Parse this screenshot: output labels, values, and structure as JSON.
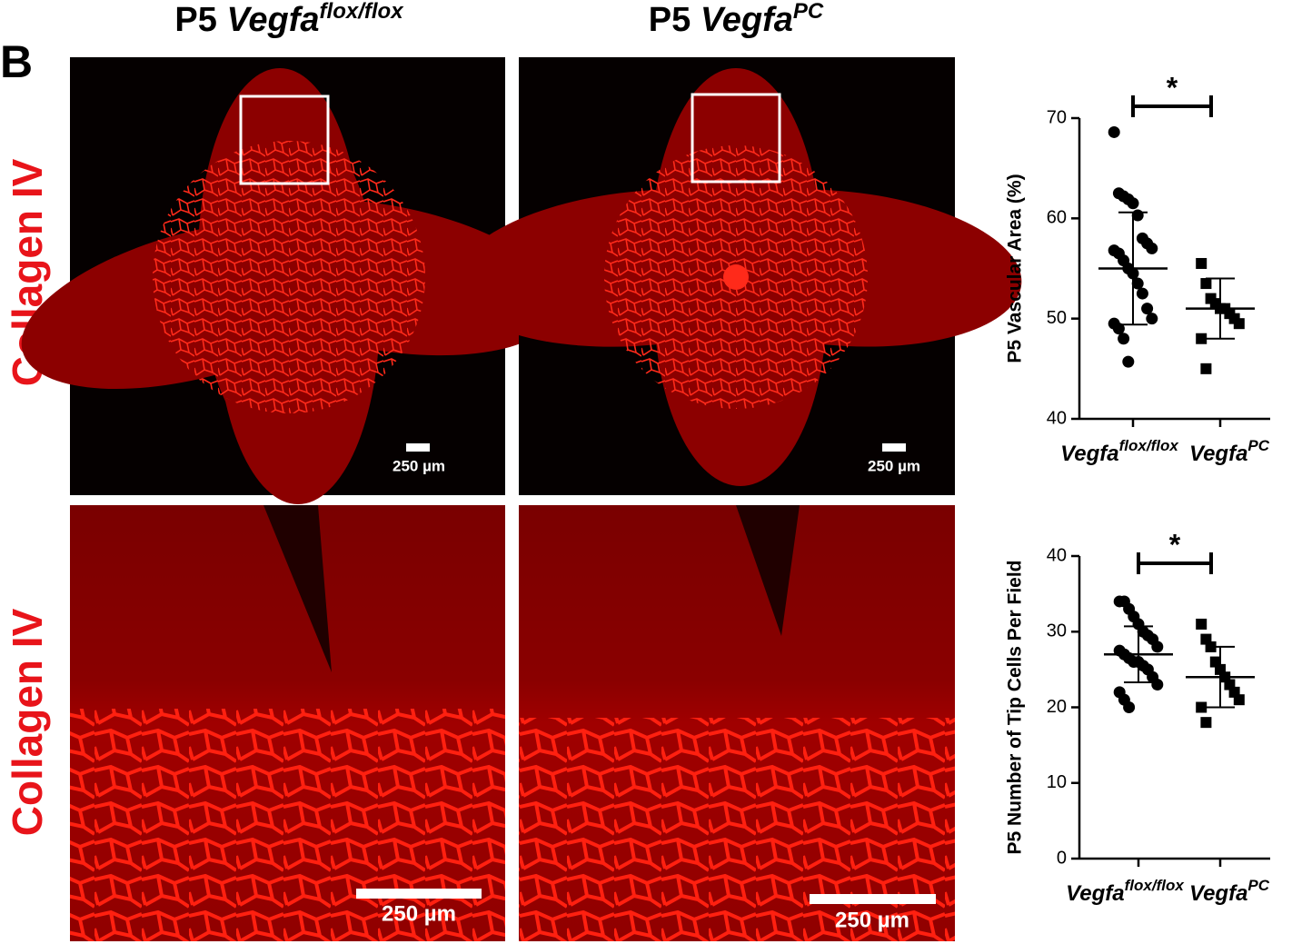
{
  "panel_label": "B",
  "column_headers": [
    {
      "prefix": "P5",
      "gene": "Vegfa",
      "superscript": "flox/flox"
    },
    {
      "prefix": "P5",
      "gene": "Vegfa",
      "superscript": "PC"
    }
  ],
  "row_labels": [
    "Collagen IV",
    "Collagen IV"
  ],
  "scale_bars": [
    "250 µm",
    "250 µm",
    "250 µm",
    "250 µm"
  ],
  "chart_data": [
    {
      "type": "dot",
      "y_label": "P5 Vascular Area (%)",
      "categories": [
        "Vegfa",
        "Vegfa"
      ],
      "category_superscripts": [
        "flox/flox",
        "PC"
      ],
      "ylim": [
        40,
        70
      ],
      "yticks": [
        40,
        50,
        60,
        70
      ],
      "annotation": "*",
      "groups": [
        {
          "marker": "circle",
          "color": "#000000",
          "mean": 55.0,
          "sd": 5.6,
          "values": [
            68.6,
            62.5,
            62.2,
            61.9,
            61.5,
            60.3,
            58.0,
            57.5,
            57.0,
            56.8,
            56.5,
            55.8,
            55.0,
            54.5,
            53.5,
            52.5,
            51.0,
            50.0,
            49.5,
            49.0,
            48.0,
            45.7
          ]
        },
        {
          "marker": "square",
          "color": "#000000",
          "mean": 51.0,
          "sd": 3.0,
          "values": [
            55.5,
            53.5,
            52.0,
            51.5,
            51.0,
            51.0,
            50.5,
            50.0,
            49.5,
            48.0,
            45.0
          ]
        }
      ]
    },
    {
      "type": "dot",
      "y_label": "P5 Number of Tip Cells Per Field",
      "categories": [
        "Vegfa",
        "Vegfa"
      ],
      "category_superscripts": [
        "flox/flox",
        "PC"
      ],
      "ylim": [
        0,
        40
      ],
      "yticks": [
        0,
        10,
        20,
        30,
        40
      ],
      "annotation": "*",
      "groups": [
        {
          "marker": "circle",
          "color": "#000000",
          "mean": 27.0,
          "sd": 3.7,
          "values": [
            34,
            34,
            33,
            32,
            31,
            30,
            29.5,
            29,
            28,
            27.5,
            27,
            26.5,
            26,
            26,
            25.5,
            25,
            24,
            23,
            22,
            21,
            20
          ]
        },
        {
          "marker": "square",
          "color": "#000000",
          "mean": 24.0,
          "sd": 4.0,
          "values": [
            31,
            29,
            28,
            26,
            25,
            24,
            23,
            22,
            21,
            20,
            18
          ]
        }
      ]
    }
  ]
}
